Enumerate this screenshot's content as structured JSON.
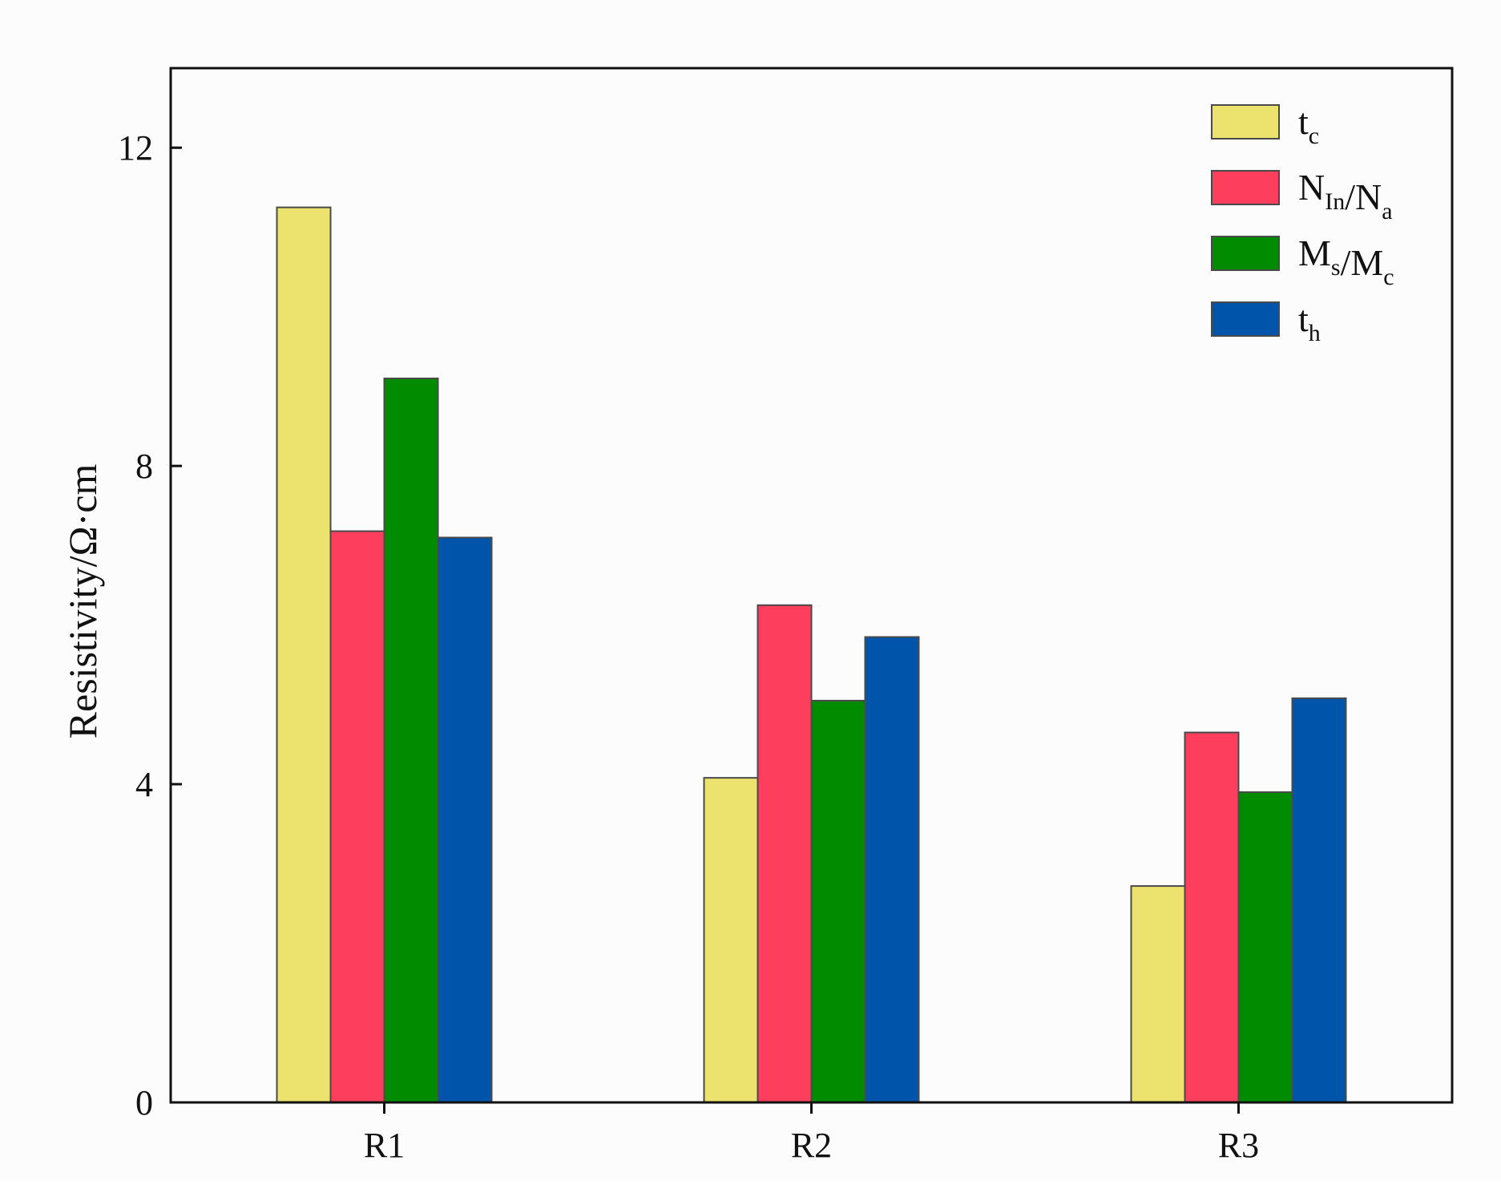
{
  "chart_data": {
    "type": "bar",
    "title": "",
    "xlabel": "",
    "ylabel": "Resistivity/Ω·cm",
    "categories": [
      "R1",
      "R2",
      "R3"
    ],
    "ylim": [
      0,
      13
    ],
    "yticks": [
      0,
      4,
      8,
      12
    ],
    "grid": false,
    "legend_position": "top-right",
    "series": [
      {
        "name": "tc",
        "legend": {
          "main": "t",
          "sub": "c"
        },
        "color": "#ebe36e",
        "values": [
          11.25,
          4.08,
          2.72
        ]
      },
      {
        "name": "NIn/Na",
        "legend": {
          "parts": [
            [
              "N",
              "In"
            ],
            [
              "/N",
              "a"
            ]
          ]
        },
        "color": "#fd3f5d",
        "values": [
          7.18,
          6.25,
          4.65
        ]
      },
      {
        "name": "Ms/Mc",
        "legend": {
          "parts": [
            [
              "M",
              "s"
            ],
            [
              "/M",
              "c"
            ]
          ]
        },
        "color": "#008b00",
        "values": [
          9.1,
          5.05,
          3.9
        ]
      },
      {
        "name": "th",
        "legend": {
          "main": "t",
          "sub": "h"
        },
        "color": "#0055aa",
        "values": [
          7.1,
          5.85,
          5.08
        ]
      }
    ]
  }
}
